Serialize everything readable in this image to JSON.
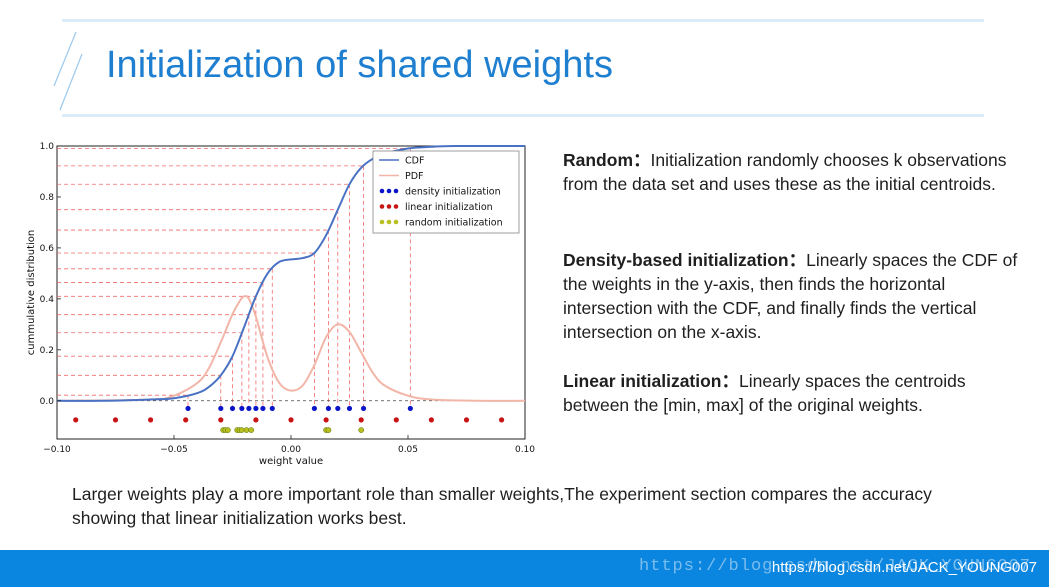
{
  "slide": {
    "title": "Initialization of shared weights"
  },
  "methods": [
    {
      "name": "Random：",
      "text": "Initialization randomly chooses k observations from the data set and uses these as the initial centroids."
    },
    {
      "name": "Density-based initialization：",
      "text": "Linearly spaces the CDF of the weights in the y-axis, then finds the horizontal intersection with the CDF, and finally finds the vertical intersection on the x-axis."
    },
    {
      "name": "Linear initialization：",
      "text": "Linearly spaces the centroids between the [min, max] of the original weights."
    }
  ],
  "note": "Larger weights play a more important role than smaller weights,The experiment section compares the accuracy showing that linear initialization works best.",
  "footer": {
    "url": "https://blog.csdn.net/JACK_YOUNG007",
    "ghost": "https://blog.csdn.net/JACK_YOUNG007"
  },
  "colors": {
    "title": "#1e7fd0",
    "footer_bg": "#0b86e0",
    "cdf": "#4a72c4",
    "pdf": "#f2b6a8",
    "density": "#0a14c8",
    "linear": "#c81414",
    "random": "#b8c020",
    "guide": "#f06a6a"
  },
  "chart_data": {
    "type": "line",
    "xlabel": "weight value",
    "ylabel": "cummulative distribution",
    "xlim": [
      -0.1,
      0.1
    ],
    "ylim": [
      -0.15,
      1.0
    ],
    "x_ticks": [
      -0.1,
      -0.05,
      0.0,
      0.05,
      0.1
    ],
    "x_tick_labels": [
      "−0.10",
      "−0.05",
      "0.00",
      "0.05",
      "0.10"
    ],
    "y_ticks": [
      0.0,
      0.2,
      0.4,
      0.6,
      0.8,
      1.0
    ],
    "y_tick_labels": [
      "0.0",
      "0.2",
      "0.4",
      "0.6",
      "0.8",
      "1.0"
    ],
    "legend": [
      "CDF",
      "PDF",
      "density initialization",
      "linear initialization",
      "random initialization"
    ],
    "legend_position": "top-right",
    "cdf": {
      "x": [
        -0.1,
        -0.08,
        -0.06,
        -0.05,
        -0.04,
        -0.035,
        -0.03,
        -0.025,
        -0.02,
        -0.015,
        -0.01,
        -0.005,
        0.0,
        0.005,
        0.01,
        0.015,
        0.02,
        0.025,
        0.03,
        0.035,
        0.04,
        0.05,
        0.06,
        0.07,
        0.1
      ],
      "y": [
        0.0,
        0.0,
        0.005,
        0.01,
        0.03,
        0.055,
        0.1,
        0.175,
        0.29,
        0.41,
        0.5,
        0.545,
        0.555,
        0.56,
        0.58,
        0.65,
        0.75,
        0.85,
        0.915,
        0.95,
        0.97,
        0.99,
        0.997,
        1.0,
        1.0
      ]
    },
    "pdf": {
      "x": [
        -0.1,
        -0.06,
        -0.05,
        -0.04,
        -0.035,
        -0.03,
        -0.025,
        -0.022,
        -0.02,
        -0.018,
        -0.015,
        -0.01,
        -0.005,
        0.0,
        0.005,
        0.01,
        0.015,
        0.02,
        0.025,
        0.03,
        0.035,
        0.04,
        0.05,
        0.06,
        0.08,
        0.1
      ],
      "y": [
        0.0,
        0.005,
        0.02,
        0.07,
        0.13,
        0.23,
        0.34,
        0.39,
        0.41,
        0.4,
        0.33,
        0.17,
        0.07,
        0.04,
        0.06,
        0.14,
        0.25,
        0.3,
        0.27,
        0.19,
        0.11,
        0.06,
        0.02,
        0.005,
        0.0,
        0.0
      ]
    },
    "density_init": [
      -0.044,
      -0.03,
      -0.025,
      -0.021,
      -0.018,
      -0.015,
      -0.012,
      -0.008,
      0.01,
      0.016,
      0.02,
      0.025,
      0.031,
      0.051
    ],
    "density_levels": [
      0.07,
      0.13,
      0.2,
      0.27,
      0.33,
      0.4,
      0.47,
      0.53,
      0.6,
      0.67,
      0.73,
      0.8,
      0.87,
      0.93
    ],
    "linear_init": [
      -0.092,
      -0.075,
      -0.06,
      -0.045,
      -0.03,
      -0.015,
      0.0,
      0.015,
      0.03,
      0.045,
      0.06,
      0.075,
      0.09
    ],
    "random_init": [
      -0.029,
      -0.028,
      -0.027,
      -0.023,
      -0.022,
      -0.021,
      -0.019,
      -0.017,
      0.015,
      0.016,
      0.03
    ],
    "marker_rows": {
      "density": -0.03,
      "linear": -0.075,
      "random": -0.115
    }
  }
}
